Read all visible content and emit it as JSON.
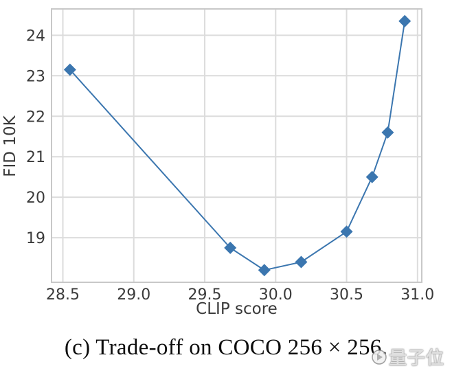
{
  "figure": {
    "caption": "(c) Trade-off on COCO 256 × 256."
  },
  "watermark": {
    "text": "量子位",
    "icon": "qbitai-logo-icon"
  },
  "chart_data": {
    "type": "line",
    "x": [
      28.55,
      29.68,
      29.92,
      30.18,
      30.5,
      30.68,
      30.79,
      30.91
    ],
    "y": [
      23.15,
      18.75,
      18.2,
      18.4,
      19.15,
      20.5,
      21.6,
      24.35
    ],
    "title": "",
    "xlabel": "CLIP score",
    "ylabel": "FID 10K",
    "xticks": [
      "28.5",
      "29.0",
      "29.5",
      "30.0",
      "30.5",
      "31.0"
    ],
    "yticks": [
      "19",
      "20",
      "21",
      "22",
      "23",
      "24"
    ],
    "xlim": [
      28.42,
      31.03
    ],
    "ylim": [
      17.9,
      24.65
    ],
    "grid": true,
    "legend_position": "none",
    "line_color": "#3b76af",
    "marker": "diamond",
    "marker_color": "#3b76af",
    "grid_color": "#dcdcdc",
    "spine_color": "#c8c8c8",
    "tick_label_color": "#3a3a3a"
  }
}
